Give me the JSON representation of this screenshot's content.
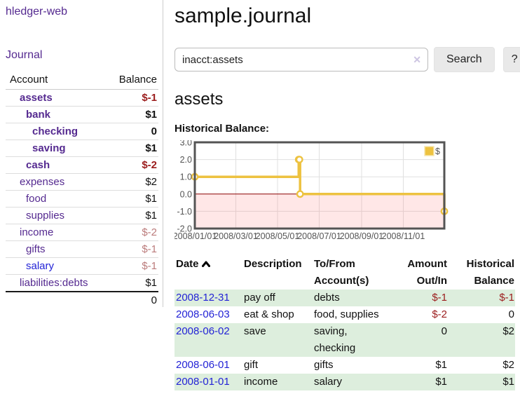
{
  "app": {
    "title": "hledger-web"
  },
  "nav": {
    "journal_label": "Journal"
  },
  "colors": {
    "link_visited": "#552a90",
    "link_new": "#2323d6",
    "negative_strong": "#9b1c1c",
    "negative_soft": "#bb7b7b",
    "row_shade_green": "#ddeedd",
    "chart_line": "#edc240",
    "zero_line": "#8b0000"
  },
  "sidebar": {
    "header": {
      "account": "Account",
      "balance": "Balance"
    },
    "accounts": [
      {
        "name": "assets",
        "depth": 1,
        "balance": "$-1",
        "in_tree": true,
        "balance_tone": "neg-strong",
        "link_tone": ""
      },
      {
        "name": "bank",
        "depth": 2,
        "balance": "$1",
        "in_tree": true,
        "balance_tone": "",
        "link_tone": ""
      },
      {
        "name": "checking",
        "depth": 3,
        "balance": "0",
        "in_tree": true,
        "balance_tone": "",
        "link_tone": ""
      },
      {
        "name": "saving",
        "depth": 3,
        "balance": "$1",
        "in_tree": true,
        "balance_tone": "",
        "link_tone": ""
      },
      {
        "name": "cash",
        "depth": 2,
        "balance": "$-2",
        "in_tree": true,
        "balance_tone": "neg-strong",
        "link_tone": ""
      },
      {
        "name": "expenses",
        "depth": 1,
        "balance": "$2",
        "in_tree": false,
        "balance_tone": "",
        "link_tone": ""
      },
      {
        "name": "food",
        "depth": 2,
        "balance": "$1",
        "in_tree": false,
        "balance_tone": "",
        "link_tone": ""
      },
      {
        "name": "supplies",
        "depth": 2,
        "balance": "$1",
        "in_tree": false,
        "balance_tone": "",
        "link_tone": ""
      },
      {
        "name": "income",
        "depth": 1,
        "balance": "$-2",
        "in_tree": false,
        "balance_tone": "neg-soft",
        "link_tone": ""
      },
      {
        "name": "gifts",
        "depth": 2,
        "balance": "$-1",
        "in_tree": false,
        "balance_tone": "neg-soft",
        "link_tone": ""
      },
      {
        "name": "salary",
        "depth": 2,
        "balance": "$-1",
        "in_tree": false,
        "balance_tone": "neg-soft",
        "link_tone": "new"
      },
      {
        "name": "liabilities:debts",
        "depth": 1,
        "balance": "$1",
        "in_tree": false,
        "balance_tone": "",
        "link_tone": ""
      }
    ],
    "total": "0"
  },
  "main": {
    "title": "sample.journal",
    "search": {
      "value": "inacct:assets",
      "clear_icon": "✕",
      "button_label": "Search",
      "help_label": "?"
    },
    "account_heading": "assets",
    "chart_label": "Historical Balance:"
  },
  "chart_data": {
    "type": "line",
    "step": true,
    "title": "Historical Balance",
    "series": [
      {
        "name": "$",
        "color": "#edc240",
        "points": [
          [
            "2008-01-01",
            1
          ],
          [
            "2008-06-01",
            2
          ],
          [
            "2008-06-02",
            2
          ],
          [
            "2008-06-03",
            0
          ],
          [
            "2008-12-31",
            -1
          ]
        ]
      }
    ],
    "xlim": [
      "2008-01-01",
      "2008-12-31"
    ],
    "ylim": [
      -2,
      3
    ],
    "xticks": [
      {
        "date": "2008-01-01",
        "label": "2008/01/01"
      },
      {
        "date": "2008-03-01",
        "label": "2008/03/01"
      },
      {
        "date": "2008-05-01",
        "label": "2008/05/01"
      },
      {
        "date": "2008-07-01",
        "label": "2008/07/01"
      },
      {
        "date": "2008-09-01",
        "label": "2008/09/01"
      },
      {
        "date": "2008-11-01",
        "label": "2008/11/01"
      }
    ],
    "yticks": [
      {
        "v": 3,
        "label": "3.0"
      },
      {
        "v": 2,
        "label": "2.0"
      },
      {
        "v": 1,
        "label": "1.0"
      },
      {
        "v": 0,
        "label": "0.0"
      },
      {
        "v": -1,
        "label": "-1.0"
      },
      {
        "v": -2,
        "label": "-2.0"
      }
    ],
    "legend": {
      "label": "$",
      "swatch_color": "#edc240",
      "position": "top-right"
    },
    "grid": true,
    "zero_line_color": "#8b0000",
    "below_zero_fill": "#ff6a6a",
    "border_color": "#545454",
    "grid_color": "#e0e0e0"
  },
  "register": {
    "columns": {
      "date": "Date",
      "description": "Description",
      "accounts": "To/From Account(s)",
      "amount": "Amount Out/In",
      "balance": "Historical Balance"
    },
    "sort": {
      "column": "date",
      "direction": "ascending"
    },
    "rows": [
      {
        "date": "2008-12-31",
        "description": "pay off",
        "accounts": "debts",
        "amount": "$-1",
        "amount_tone": "neg",
        "balance": "$-1",
        "balance_tone": "neg",
        "shade": true
      },
      {
        "date": "2008-06-03",
        "description": "eat & shop",
        "accounts": "food, supplies",
        "amount": "$-2",
        "amount_tone": "neg",
        "balance": "0",
        "balance_tone": "",
        "shade": false
      },
      {
        "date": "2008-06-02",
        "description": "save",
        "accounts": "saving, checking",
        "amount": "0",
        "amount_tone": "",
        "balance": "$2",
        "balance_tone": "",
        "shade": true
      },
      {
        "date": "2008-06-01",
        "description": "gift",
        "accounts": "gifts",
        "amount": "$1",
        "amount_tone": "",
        "balance": "$2",
        "balance_tone": "",
        "shade": false
      },
      {
        "date": "2008-01-01",
        "description": "income",
        "accounts": "salary",
        "amount": "$1",
        "amount_tone": "",
        "balance": "$1",
        "balance_tone": "",
        "shade": true
      }
    ]
  }
}
